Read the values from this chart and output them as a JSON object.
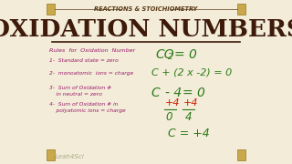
{
  "bg_color": "#f2ecd8",
  "title_top": "REACTIONS & STOICHIOMETRY",
  "title_main": "OXIDATION NUMBERS",
  "title_color": "#3d1a0a",
  "title_top_color": "#5a3a18",
  "rules_header": "Rules  for  Oxidation  Number",
  "rules": [
    "1-  Standard state = zero",
    "2-  monoatomic  ions = charge",
    "3-  Sum of Oxidation #\n    in neutral = zero",
    "4-  Sum of Oxidation # in\n    polyatomic ions = charge"
  ],
  "rules_color": "#9b1a6a",
  "eq_color": "#2d7a1a",
  "red_color": "#cc2200",
  "watermark": "Leah4Sci",
  "corner_color": "#c8a84b"
}
